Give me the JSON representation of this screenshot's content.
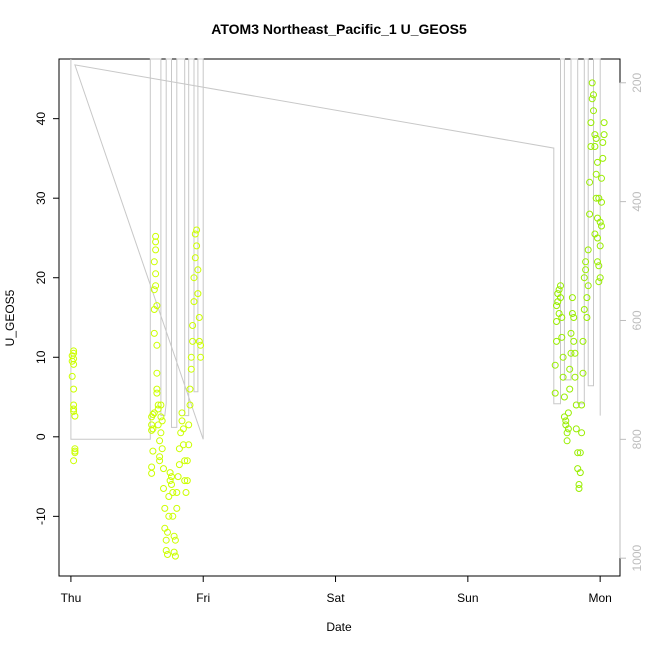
{
  "chart_data": {
    "type": "scatter",
    "title": "ATOM3 Northeast_Pacific_1 U_GEOS5",
    "xlabel": "Date",
    "ylabel": "U_GEOS5",
    "x_ticks": [
      "Thu",
      "Fri",
      "Sat",
      "Sun",
      "Mon"
    ],
    "xlim": [
      -0.09,
      4.15
    ],
    "ylim": [
      -17.5,
      47.5
    ],
    "y_ticks": [
      -10,
      0,
      10,
      20,
      30,
      40
    ],
    "y2_ticks": [
      200,
      400,
      600,
      800,
      1000
    ],
    "y2lim": [
      1030,
      160
    ],
    "y2_reversed": true,
    "grid": false,
    "colors": {
      "points_day1": "#ccff00",
      "points_day4": "#99ee00",
      "pressure_line": "#c8c8c8",
      "axis": "#000000",
      "right_axis": "#bdbdbd"
    },
    "series": [
      {
        "values": [
          [
            0.01,
            9.5
          ],
          [
            0.01,
            10.2
          ],
          [
            0.02,
            10.8
          ],
          [
            0.02,
            9.1
          ],
          [
            0.01,
            7.6
          ],
          [
            0.02,
            6.0
          ],
          [
            0.02,
            4.0
          ],
          [
            0.02,
            3.2
          ],
          [
            0.03,
            2.6
          ],
          [
            0.02,
            3.5
          ],
          [
            0.03,
            -1.5
          ],
          [
            0.03,
            -2.0
          ],
          [
            0.02,
            -3.0
          ],
          [
            0.03,
            -1.8
          ],
          [
            0.02,
            10.5
          ],
          [
            0.02,
            9.8
          ],
          [
            0.61,
            2.5
          ],
          [
            0.61,
            1.5
          ],
          [
            0.61,
            0.8
          ],
          [
            0.61,
            -3.8
          ],
          [
            0.61,
            -4.6
          ],
          [
            0.62,
            2.8
          ],
          [
            0.62,
            1.0
          ],
          [
            0.62,
            -1.8
          ],
          [
            0.63,
            3.0
          ],
          [
            0.63,
            13.0
          ],
          [
            0.63,
            16.0
          ],
          [
            0.63,
            18.5
          ],
          [
            0.63,
            22.0
          ],
          [
            0.64,
            25.2
          ],
          [
            0.64,
            24.5
          ],
          [
            0.64,
            23.5
          ],
          [
            0.64,
            20.5
          ],
          [
            0.64,
            19.0
          ],
          [
            0.65,
            16.5
          ],
          [
            0.65,
            11.5
          ],
          [
            0.65,
            8.0
          ],
          [
            0.65,
            5.5
          ],
          [
            0.65,
            6.0
          ],
          [
            0.66,
            4.0
          ],
          [
            0.66,
            3.5
          ],
          [
            0.66,
            1.5
          ],
          [
            0.67,
            -0.5
          ],
          [
            0.67,
            -2.5
          ],
          [
            0.67,
            -3.0
          ],
          [
            0.68,
            0.5
          ],
          [
            0.68,
            2.5
          ],
          [
            0.68,
            4.0
          ],
          [
            0.69,
            2.0
          ],
          [
            0.69,
            -1.5
          ],
          [
            0.7,
            -4.0
          ],
          [
            0.7,
            -6.5
          ],
          [
            0.71,
            -9.0
          ],
          [
            0.71,
            -11.5
          ],
          [
            0.72,
            -13.0
          ],
          [
            0.72,
            -14.3
          ],
          [
            0.73,
            -14.8
          ],
          [
            0.73,
            -12.0
          ],
          [
            0.74,
            -10.0
          ],
          [
            0.74,
            -7.5
          ],
          [
            0.75,
            -5.5
          ],
          [
            0.75,
            -4.5
          ],
          [
            0.76,
            -5.0
          ],
          [
            0.76,
            -6.0
          ],
          [
            0.77,
            -7.0
          ],
          [
            0.77,
            -10.0
          ],
          [
            0.78,
            -12.5
          ],
          [
            0.78,
            -14.5
          ],
          [
            0.79,
            -15.0
          ],
          [
            0.79,
            -13.0
          ],
          [
            0.8,
            -9.0
          ],
          [
            0.8,
            -7.0
          ],
          [
            0.81,
            -5.0
          ],
          [
            0.82,
            -3.5
          ],
          [
            0.82,
            -1.5
          ],
          [
            0.83,
            0.5
          ],
          [
            0.84,
            2.0
          ],
          [
            0.84,
            3.0
          ],
          [
            0.85,
            1.0
          ],
          [
            0.85,
            -1.0
          ],
          [
            0.86,
            -3.0
          ],
          [
            0.86,
            -5.5
          ],
          [
            0.87,
            -7.0
          ],
          [
            0.88,
            -5.5
          ],
          [
            0.88,
            -3.0
          ],
          [
            0.89,
            -1.0
          ],
          [
            0.89,
            1.5
          ],
          [
            0.9,
            4.0
          ],
          [
            0.9,
            6.0
          ],
          [
            0.91,
            8.5
          ],
          [
            0.91,
            10.0
          ],
          [
            0.92,
            12.0
          ],
          [
            0.92,
            14.0
          ],
          [
            0.93,
            17.0
          ],
          [
            0.93,
            20.0
          ],
          [
            0.94,
            22.5
          ],
          [
            0.94,
            25.5
          ],
          [
            0.95,
            26.0
          ],
          [
            0.95,
            24.0
          ],
          [
            0.96,
            21.0
          ],
          [
            0.96,
            18.0
          ],
          [
            0.97,
            15.0
          ],
          [
            0.97,
            12.0
          ],
          [
            0.98,
            10.0
          ],
          [
            0.98,
            11.5
          ]
        ]
      },
      {
        "values": [
          [
            3.66,
            5.5
          ],
          [
            3.66,
            9.0
          ],
          [
            3.67,
            12.0
          ],
          [
            3.67,
            14.5
          ],
          [
            3.67,
            16.5
          ],
          [
            3.68,
            18.0
          ],
          [
            3.68,
            17.0
          ],
          [
            3.69,
            15.5
          ],
          [
            3.69,
            18.5
          ],
          [
            3.7,
            19.0
          ],
          [
            3.7,
            17.5
          ],
          [
            3.71,
            15.0
          ],
          [
            3.71,
            12.5
          ],
          [
            3.72,
            10.0
          ],
          [
            3.72,
            7.5
          ],
          [
            3.73,
            5.0
          ],
          [
            3.73,
            2.5
          ],
          [
            3.74,
            1.5
          ],
          [
            3.74,
            2.0
          ],
          [
            3.75,
            0.5
          ],
          [
            3.75,
            -0.5
          ],
          [
            3.76,
            1.0
          ],
          [
            3.76,
            3.0
          ],
          [
            3.77,
            6.0
          ],
          [
            3.77,
            8.5
          ],
          [
            3.78,
            10.5
          ],
          [
            3.78,
            13.0
          ],
          [
            3.79,
            15.5
          ],
          [
            3.79,
            17.5
          ],
          [
            3.8,
            15.0
          ],
          [
            3.8,
            12.0
          ],
          [
            3.81,
            10.5
          ],
          [
            3.81,
            7.5
          ],
          [
            3.82,
            4.0
          ],
          [
            3.82,
            1.0
          ],
          [
            3.83,
            -2.0
          ],
          [
            3.83,
            -4.0
          ],
          [
            3.84,
            -6.5
          ],
          [
            3.84,
            -6.0
          ],
          [
            3.85,
            -4.5
          ],
          [
            3.85,
            -2.0
          ],
          [
            3.86,
            0.5
          ],
          [
            3.86,
            4.0
          ],
          [
            3.87,
            8.0
          ],
          [
            3.87,
            12.0
          ],
          [
            3.88,
            16.0
          ],
          [
            3.88,
            20.0
          ],
          [
            3.89,
            22.0
          ],
          [
            3.89,
            21.0
          ],
          [
            3.9,
            17.5
          ],
          [
            3.9,
            15.0
          ],
          [
            3.91,
            19.0
          ],
          [
            3.91,
            23.5
          ],
          [
            3.92,
            28.0
          ],
          [
            3.92,
            32.0
          ],
          [
            3.93,
            36.5
          ],
          [
            3.93,
            39.5
          ],
          [
            3.94,
            42.5
          ],
          [
            3.94,
            44.5
          ],
          [
            3.95,
            43.0
          ],
          [
            3.95,
            41.0
          ],
          [
            3.96,
            38.0
          ],
          [
            3.96,
            36.5
          ],
          [
            3.97,
            33.0
          ],
          [
            3.97,
            30.0
          ],
          [
            3.98,
            27.5
          ],
          [
            3.98,
            25.0
          ],
          [
            3.98,
            22.0
          ],
          [
            3.99,
            19.5
          ],
          [
            3.99,
            21.5
          ],
          [
            4.0,
            24.0
          ],
          [
            4.0,
            27.0
          ],
          [
            4.01,
            29.5
          ],
          [
            4.01,
            32.5
          ],
          [
            4.02,
            35.0
          ],
          [
            4.02,
            37.0
          ],
          [
            4.03,
            39.5
          ],
          [
            4.03,
            38.0
          ],
          [
            4.01,
            26.5
          ],
          [
            4.0,
            20.0
          ],
          [
            3.99,
            30.0
          ],
          [
            3.98,
            34.5
          ],
          [
            3.97,
            37.5
          ],
          [
            3.96,
            25.5
          ]
        ]
      }
    ],
    "pressure_line": {
      "axis": "right",
      "x": [
        0.0,
        0.0,
        0.03,
        0.05,
        0.6,
        0.6,
        0.68,
        0.68,
        0.71,
        0.72,
        0.72,
        0.76,
        0.76,
        0.8,
        0.8,
        0.86,
        0.86,
        0.89,
        0.89,
        0.93,
        0.93,
        0.96,
        0.96,
        1.0,
        1.0,
        0.03,
        3.65,
        3.65,
        3.7,
        3.7,
        3.73,
        3.73,
        3.78,
        3.78,
        3.83,
        3.83,
        3.88,
        3.88,
        3.91,
        3.91,
        3.95,
        3.95,
        4.0,
        4.0
      ],
      "y": [
        160,
        800,
        800,
        800,
        800,
        160,
        160,
        760,
        760,
        740,
        160,
        160,
        780,
        780,
        160,
        160,
        760,
        760,
        160,
        160,
        720,
        720,
        160,
        160,
        800,
        170,
        310,
        740,
        740,
        160,
        160,
        700,
        700,
        160,
        160,
        740,
        740,
        160,
        160,
        710,
        710,
        160,
        160,
        760
      ]
    }
  }
}
